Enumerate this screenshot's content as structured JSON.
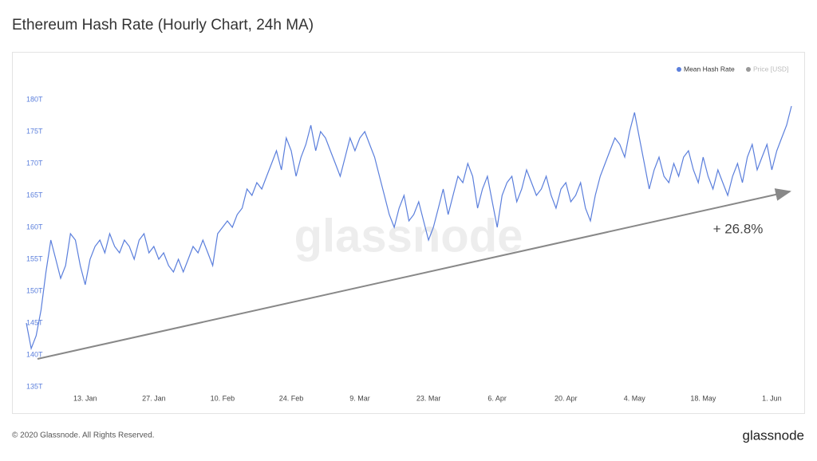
{
  "chart_data": {
    "type": "line",
    "title": "Ethereum Hash Rate (Hourly Chart, 24h MA)",
    "annotation": "+ 26.8%",
    "watermark": "glassnode",
    "footer": "© 2020 Glassnode. All Rights Reserved.",
    "brand": "glassnode",
    "inactive_legend": [
      "Price [USD]"
    ],
    "categories": [
      null,
      null,
      null,
      null,
      null,
      null,
      null,
      null,
      null,
      null,
      null,
      null,
      "13. Jan",
      null,
      null,
      null,
      null,
      null,
      null,
      null,
      null,
      null,
      null,
      null,
      null,
      null,
      "27. Jan",
      null,
      null,
      null,
      null,
      null,
      null,
      null,
      null,
      null,
      null,
      null,
      null,
      null,
      "10. Feb",
      null,
      null,
      null,
      null,
      null,
      null,
      null,
      null,
      null,
      null,
      null,
      null,
      null,
      "24. Feb",
      null,
      null,
      null,
      null,
      null,
      null,
      null,
      null,
      null,
      null,
      null,
      null,
      null,
      "9. Mar",
      null,
      null,
      null,
      null,
      null,
      null,
      null,
      null,
      null,
      null,
      null,
      null,
      null,
      "23. Mar",
      null,
      null,
      null,
      null,
      null,
      null,
      null,
      null,
      null,
      null,
      null,
      null,
      null,
      "6. Apr",
      null,
      null,
      null,
      null,
      null,
      null,
      null,
      null,
      null,
      null,
      null,
      null,
      null,
      "20. Apr",
      null,
      null,
      null,
      null,
      null,
      null,
      null,
      null,
      null,
      null,
      null,
      null,
      null,
      "4. May",
      null,
      null,
      null,
      null,
      null,
      null,
      null,
      null,
      null,
      null,
      null,
      null,
      null,
      "18. May",
      null,
      null,
      null,
      null,
      null,
      null,
      null,
      null,
      null,
      null,
      null,
      null,
      null,
      "1. Jun",
      null,
      null,
      null,
      null
    ],
    "series": [
      {
        "name": "Mean Hash Rate",
        "color": "#5b7fdc",
        "values": [
          145,
          141,
          143,
          147,
          153,
          158,
          155,
          152,
          154,
          159,
          158,
          154,
          151,
          155,
          157,
          158,
          156,
          159,
          157,
          156,
          158,
          157,
          155,
          158,
          159,
          156,
          157,
          155,
          156,
          154,
          153,
          155,
          153,
          155,
          157,
          156,
          158,
          156,
          154,
          159,
          160,
          161,
          160,
          162,
          163,
          166,
          165,
          167,
          166,
          168,
          170,
          172,
          169,
          174,
          172,
          168,
          171,
          173,
          176,
          172,
          175,
          174,
          172,
          170,
          168,
          171,
          174,
          172,
          174,
          175,
          173,
          171,
          168,
          165,
          162,
          160,
          163,
          165,
          161,
          162,
          164,
          161,
          158,
          160,
          163,
          166,
          162,
          165,
          168,
          167,
          170,
          168,
          163,
          166,
          168,
          164,
          160,
          165,
          167,
          168,
          164,
          166,
          169,
          167,
          165,
          166,
          168,
          165,
          163,
          166,
          167,
          164,
          165,
          167,
          163,
          161,
          165,
          168,
          170,
          172,
          174,
          173,
          171,
          175,
          178,
          174,
          170,
          166,
          169,
          171,
          168,
          167,
          170,
          168,
          171,
          172,
          169,
          167,
          171,
          168,
          166,
          169,
          167,
          165,
          168,
          170,
          167,
          171,
          173,
          169,
          171,
          173,
          169,
          172,
          174,
          176,
          179
        ]
      }
    ],
    "ylim": [
      135,
      180
    ],
    "yticks": [
      {
        "value": 135,
        "label": "135T"
      },
      {
        "value": 140,
        "label": "140T"
      },
      {
        "value": 145,
        "label": "145T"
      },
      {
        "value": 150,
        "label": "150T"
      },
      {
        "value": 155,
        "label": "155T"
      },
      {
        "value": 160,
        "label": "160T"
      },
      {
        "value": 165,
        "label": "165T"
      },
      {
        "value": 170,
        "label": "170T"
      },
      {
        "value": 175,
        "label": "175T"
      },
      {
        "value": 180,
        "label": "180T"
      }
    ],
    "grid": false
  }
}
